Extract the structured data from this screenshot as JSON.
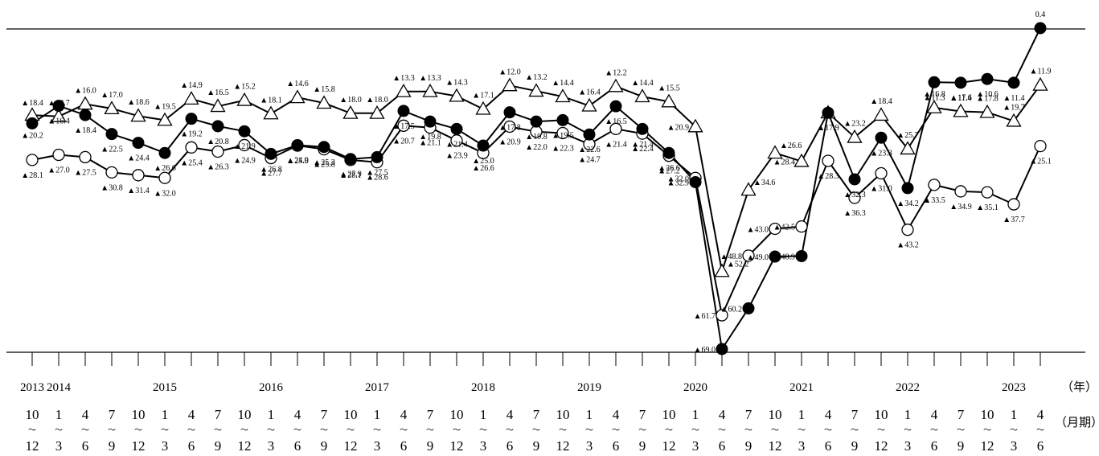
{
  "chart_data": {
    "type": "line",
    "x": [
      "2013 10～12",
      "2014 1～3",
      "2014 4～6",
      "2014 7～9",
      "2014 10～12",
      "2015 1～3",
      "2015 4～6",
      "2015 7～9",
      "2015 10～12",
      "2016 1～3",
      "2016 4～6",
      "2016 7～9",
      "2016 10～12",
      "2017 1～3",
      "2017 4～6",
      "2017 7～9",
      "2017 10～12",
      "2018 1～3",
      "2018 4～6",
      "2018 7～9",
      "2018 10～12",
      "2019 1～3",
      "2019 4～6",
      "2019 7～9",
      "2019 10～12",
      "2020 1～3",
      "2020 4～6",
      "2020 7～9",
      "2020 10～12",
      "2021 1～3",
      "2021 4～6",
      "2021 7～9",
      "2021 10～12",
      "2022 1～3",
      "2022 4～6",
      "2022 7～9",
      "2022 10～12",
      "2023 1～3",
      "2023 4～6"
    ],
    "year_labels": [
      {
        "text": "2013",
        "index": 0
      },
      {
        "text": "2014",
        "index": 1
      },
      {
        "text": "2015",
        "index": 5
      },
      {
        "text": "2016",
        "index": 9
      },
      {
        "text": "2017",
        "index": 13
      },
      {
        "text": "2018",
        "index": 17
      },
      {
        "text": "2019",
        "index": 21
      },
      {
        "text": "2020",
        "index": 25
      },
      {
        "text": "2021",
        "index": 29
      },
      {
        "text": "2022",
        "index": 33
      },
      {
        "text": "2023",
        "index": 37
      }
    ],
    "year_unit": "（年）",
    "month_unit": "（月期）",
    "quarter_tops": [
      "10",
      "1",
      "4",
      "7",
      "10",
      "1",
      "4",
      "7",
      "10",
      "1",
      "4",
      "7",
      "10",
      "1",
      "4",
      "7",
      "10",
      "1",
      "4",
      "7",
      "10",
      "1",
      "4",
      "7",
      "10",
      "1",
      "4",
      "7",
      "10",
      "1",
      "4",
      "7",
      "10",
      "1",
      "4",
      "7",
      "10",
      "1",
      "4"
    ],
    "quarter_tilde": "～",
    "quarter_bottoms": [
      "12",
      "3",
      "6",
      "9",
      "12",
      "3",
      "6",
      "9",
      "12",
      "3",
      "6",
      "9",
      "12",
      "3",
      "6",
      "9",
      "12",
      "3",
      "6",
      "9",
      "12",
      "3",
      "6",
      "9",
      "12",
      "3",
      "6",
      "9",
      "12",
      "3",
      "6",
      "9",
      "12",
      "3",
      "6",
      "9",
      "12",
      "3",
      "6"
    ],
    "ylim": [
      -69.0,
      0.4
    ],
    "series": [
      {
        "marker": "triangle",
        "values": [
          -18.4,
          -18.7,
          -16.0,
          -17.0,
          -18.6,
          -19.5,
          -14.9,
          -16.5,
          -15.2,
          -18.1,
          -14.6,
          -15.8,
          -18.0,
          -18.0,
          -13.3,
          -13.3,
          -14.3,
          -17.1,
          -12.0,
          -13.2,
          -14.4,
          -16.4,
          -12.2,
          -14.4,
          -15.5,
          -20.9,
          -52.2,
          -34.6,
          -26.6,
          -28.4,
          -17.9,
          -23.2,
          -18.4,
          -25.7,
          -16.8,
          -17.6,
          -17.8,
          -19.7,
          -11.9
        ],
        "labels": [
          "▲18.4",
          "▲18.7",
          "▲16.0",
          "▲17.0",
          "▲18.6",
          "▲19.5",
          "▲14.9",
          "▲16.5",
          "▲15.2",
          "▲18.1",
          "▲14.6",
          "▲15.8",
          "▲18.0",
          "▲18.0",
          "▲13.3",
          "▲13.3",
          "▲14.3",
          "▲17.1",
          "▲12.0",
          "▲13.2",
          "▲14.4",
          "▲16.4",
          "▲12.2",
          "▲14.4",
          "▲15.5",
          "▲20.9",
          "▲52.2",
          "▲34.6",
          "▲26.6",
          "▲28.4",
          "",
          "▲23.2",
          "▲18.4",
          "▲25.7",
          "▲16.8",
          "▲17.6",
          "▲17.8",
          "▲19.7",
          "▲11.9"
        ]
      },
      {
        "marker": "filled-circle",
        "values": [
          -20.2,
          -16.4,
          -18.4,
          -22.5,
          -24.4,
          -26.6,
          -19.2,
          -20.8,
          -21.9,
          -26.8,
          -24.9,
          -25.3,
          -27.9,
          -27.5,
          -17.5,
          -19.8,
          -21.4,
          -25.0,
          -17.8,
          -19.8,
          -19.5,
          -22.6,
          -16.5,
          -21.4,
          -26.6,
          -32.9,
          -69.0,
          -60.2,
          -49.0,
          -48.9,
          -17.9,
          -32.3,
          -23.3,
          -34.2,
          -11.3,
          -11.4,
          -10.6,
          -11.4,
          0.4
        ],
        "labels": [
          "▲20.2",
          "▲16.4",
          "▲18.4",
          "▲22.5",
          "▲24.4",
          "▲26.6",
          "▲19.2",
          "▲20.8",
          "▲21.9",
          "▲26.8",
          "▲24.9",
          "▲25.3",
          "▲27.9",
          "▲27.5",
          "▲17.5",
          "▲19.8",
          "▲21.4",
          "▲25.0",
          "▲17.8",
          "▲19.8",
          "▲19.5",
          "▲22.6",
          "▲16.5",
          "▲21.4",
          "▲26.6",
          "▲32.9",
          "▲69.0",
          "▲60.2",
          "▲49.0",
          "▲48.9",
          "▲17.9",
          "▲32.3",
          "▲23.3",
          "▲34.2",
          "▲11.3",
          "▲11.4",
          "▲10.6",
          "▲11.4",
          "0.4"
        ]
      },
      {
        "marker": "open-circle",
        "values": [
          -28.1,
          -27.0,
          -27.5,
          -30.8,
          -31.4,
          -32.0,
          -25.4,
          -26.3,
          -24.9,
          -27.7,
          -25.0,
          -25.8,
          -28.1,
          -28.6,
          -20.7,
          -21.1,
          -23.9,
          -26.6,
          -20.9,
          -22.0,
          -22.3,
          -24.7,
          -21.4,
          -22.4,
          -27.2,
          -32.0,
          -61.7,
          -48.8,
          -43.0,
          -42.5,
          -28.3,
          -36.3,
          -31.0,
          -43.2,
          -33.5,
          -34.9,
          -35.1,
          -37.7,
          -25.1
        ],
        "labels": [
          "▲28.1",
          "▲27.0",
          "▲27.5",
          "▲30.8",
          "▲31.4",
          "▲32.0",
          "▲25.4",
          "▲26.3",
          "▲24.9",
          "▲27.7",
          "▲25.0",
          "▲25.8",
          "▲28.1",
          "▲28.6",
          "▲20.7",
          "▲21.1",
          "▲23.9",
          "▲26.6",
          "▲20.9",
          "▲22.0",
          "▲22.3",
          "▲24.7",
          "▲21.4",
          "▲22.4",
          "▲27.2",
          "▲32.0",
          "▲61.7",
          "▲48.8",
          "▲43.0",
          "▲42.5",
          "▲28.3",
          "▲36.3",
          "▲31.0",
          "▲43.2",
          "▲33.5",
          "▲34.9",
          "▲35.1",
          "▲37.7",
          "▲25.1"
        ]
      }
    ],
    "xlabel": "",
    "ylabel": "",
    "title": ""
  }
}
